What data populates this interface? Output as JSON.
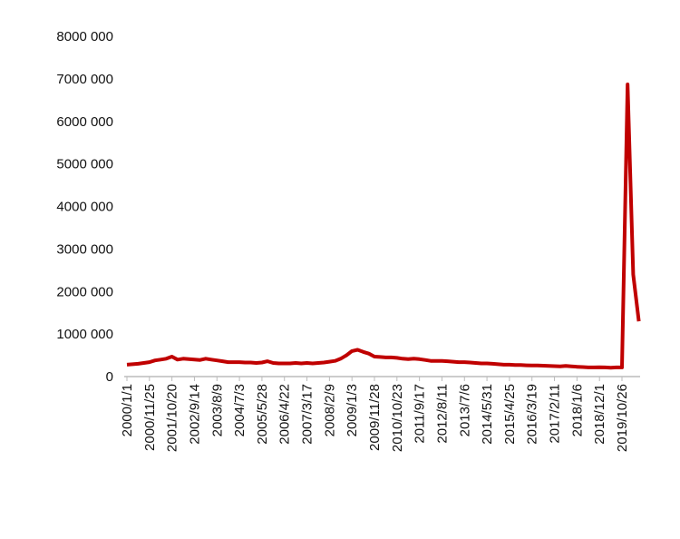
{
  "chart_data": {
    "type": "line",
    "categories": [
      "2000/1/1",
      null,
      null,
      null,
      "2000/11/25",
      null,
      null,
      null,
      "2001/10/20",
      null,
      null,
      null,
      "2002/9/14",
      null,
      null,
      null,
      "2003/8/9",
      null,
      null,
      null,
      "2004/7/3",
      null,
      null,
      null,
      "2005/5/28",
      null,
      null,
      null,
      "2006/4/22",
      null,
      null,
      null,
      "2007/3/17",
      null,
      null,
      null,
      "2008/2/9",
      null,
      null,
      null,
      "2009/1/3",
      null,
      null,
      null,
      "2009/11/28",
      null,
      null,
      null,
      "2010/10/23",
      null,
      null,
      null,
      "2011/9/17",
      null,
      null,
      null,
      "2012/8/11",
      null,
      null,
      null,
      "2013/7/6",
      null,
      null,
      null,
      "2014/5/31",
      null,
      null,
      null,
      "2015/4/25",
      null,
      null,
      null,
      "2016/3/19",
      null,
      null,
      null,
      "2017/2/11",
      null,
      null,
      null,
      "2018/1/6",
      null,
      null,
      null,
      "2018/12/1",
      null,
      null,
      null,
      "2019/10/26",
      null,
      null,
      null
    ],
    "values": [
      280000,
      290000,
      300000,
      320000,
      340000,
      380000,
      400000,
      420000,
      470000,
      400000,
      420000,
      410000,
      400000,
      390000,
      420000,
      400000,
      380000,
      360000,
      340000,
      340000,
      340000,
      330000,
      330000,
      320000,
      330000,
      360000,
      320000,
      310000,
      310000,
      310000,
      320000,
      310000,
      320000,
      310000,
      320000,
      330000,
      350000,
      370000,
      420000,
      500000,
      600000,
      630000,
      580000,
      540000,
      470000,
      460000,
      450000,
      450000,
      440000,
      420000,
      410000,
      420000,
      410000,
      390000,
      370000,
      370000,
      370000,
      360000,
      350000,
      340000,
      340000,
      330000,
      320000,
      310000,
      310000,
      300000,
      290000,
      280000,
      280000,
      270000,
      270000,
      265000,
      260000,
      260000,
      255000,
      250000,
      245000,
      240000,
      250000,
      240000,
      230000,
      225000,
      215000,
      215000,
      220000,
      215000,
      210000,
      215000,
      215000,
      6870000,
      2400000,
      1300000
    ],
    "color": "#c00000",
    "ylim": [
      0,
      8000000
    ],
    "yticks": [
      0,
      {
        "value": 1000000,
        "label": "1000 000"
      },
      {
        "value": 2000000,
        "label": "2000 000"
      },
      {
        "value": 3000000,
        "label": "3000 000"
      },
      {
        "value": 4000000,
        "label": "4000 000"
      },
      {
        "value": 5000000,
        "label": "5000 000"
      },
      {
        "value": 6000000,
        "label": "6000 000"
      },
      {
        "value": 7000000,
        "label": "7000 000"
      },
      {
        "value": 8000000,
        "label": "8000 000"
      }
    ],
    "grid": false
  }
}
